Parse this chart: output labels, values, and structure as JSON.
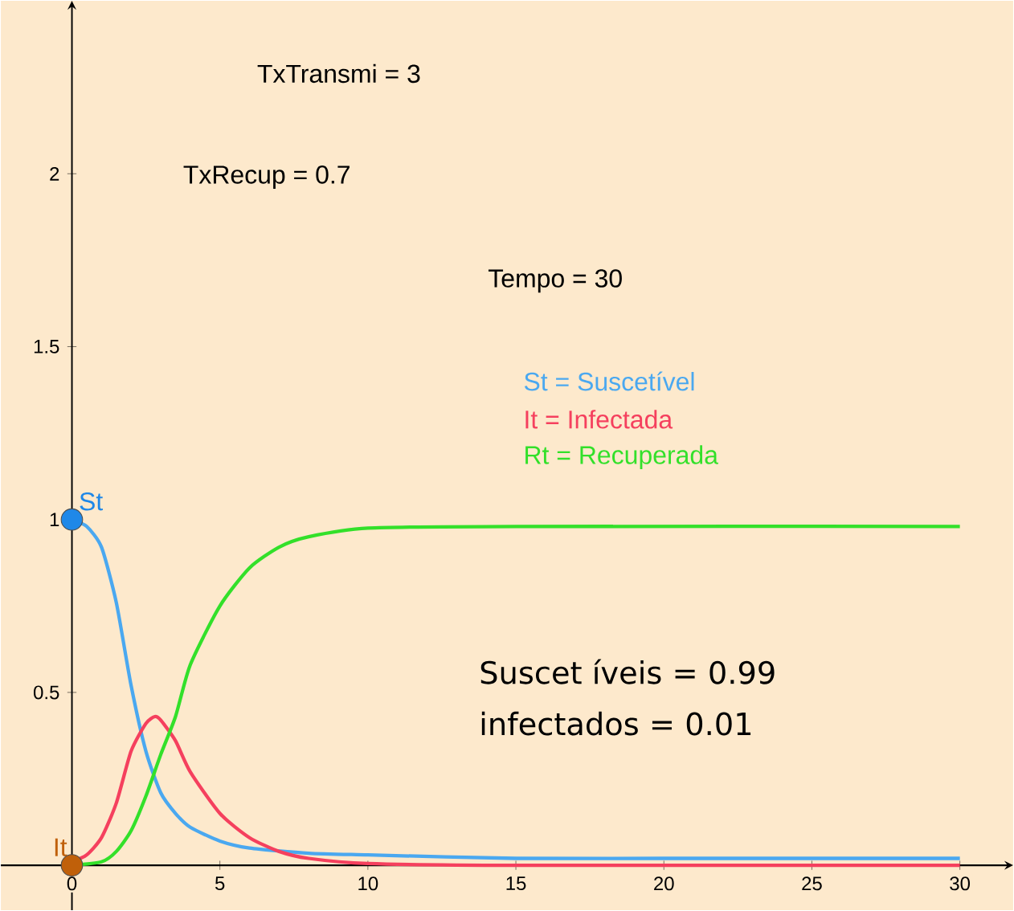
{
  "chart_data": {
    "type": "line",
    "xlim": [
      -2.4,
      31.8
    ],
    "ylim": [
      -0.13,
      2.5
    ],
    "xticks": [
      0,
      5,
      10,
      15,
      20,
      25,
      30
    ],
    "yticks": [
      0.5,
      1,
      1.5,
      2
    ],
    "grid": false,
    "series": [
      {
        "name": "St = Suscetível",
        "color": "#4aa8f0",
        "x": [
          0,
          0.5,
          1,
          1.5,
          2,
          2.5,
          3,
          3.5,
          4,
          5,
          6,
          8,
          10,
          15,
          20,
          30
        ],
        "values": [
          1,
          0.98,
          0.92,
          0.76,
          0.52,
          0.33,
          0.21,
          0.15,
          0.11,
          0.07,
          0.05,
          0.035,
          0.03,
          0.02,
          0.02,
          0.02
        ]
      },
      {
        "name": "It = Infectada",
        "color": "#f5405e",
        "x": [
          0,
          0.5,
          1,
          1.5,
          2,
          2.5,
          2.8,
          3,
          3.5,
          4,
          5,
          6,
          7,
          8,
          10,
          15,
          30
        ],
        "values": [
          0.01,
          0.03,
          0.08,
          0.18,
          0.33,
          0.41,
          0.43,
          0.42,
          0.36,
          0.27,
          0.15,
          0.08,
          0.04,
          0.02,
          0.005,
          0,
          0
        ]
      },
      {
        "name": "Rt = Recuperada",
        "color": "#33e02a",
        "x": [
          0,
          1,
          1.5,
          2,
          2.5,
          3,
          3.5,
          4,
          5,
          6,
          7,
          8,
          10,
          15,
          30
        ],
        "values": [
          0,
          0.01,
          0.04,
          0.1,
          0.2,
          0.32,
          0.43,
          0.58,
          0.75,
          0.86,
          0.92,
          0.95,
          0.975,
          0.98,
          0.98
        ]
      },
      {
        "name": "St",
        "type": "scatter",
        "color": "#1f88e8",
        "x": [
          0
        ],
        "values": [
          1
        ]
      },
      {
        "name": "It",
        "type": "scatter",
        "color": "#c0600a",
        "x": [
          0
        ],
        "values": [
          0
        ]
      }
    ],
    "annotations": [
      "TxTransmi = 3",
      "TxRecup = 0.7",
      "Tempo = 30",
      "Suscet íveis = 0.99",
      "infectados = 0.01"
    ]
  }
}
